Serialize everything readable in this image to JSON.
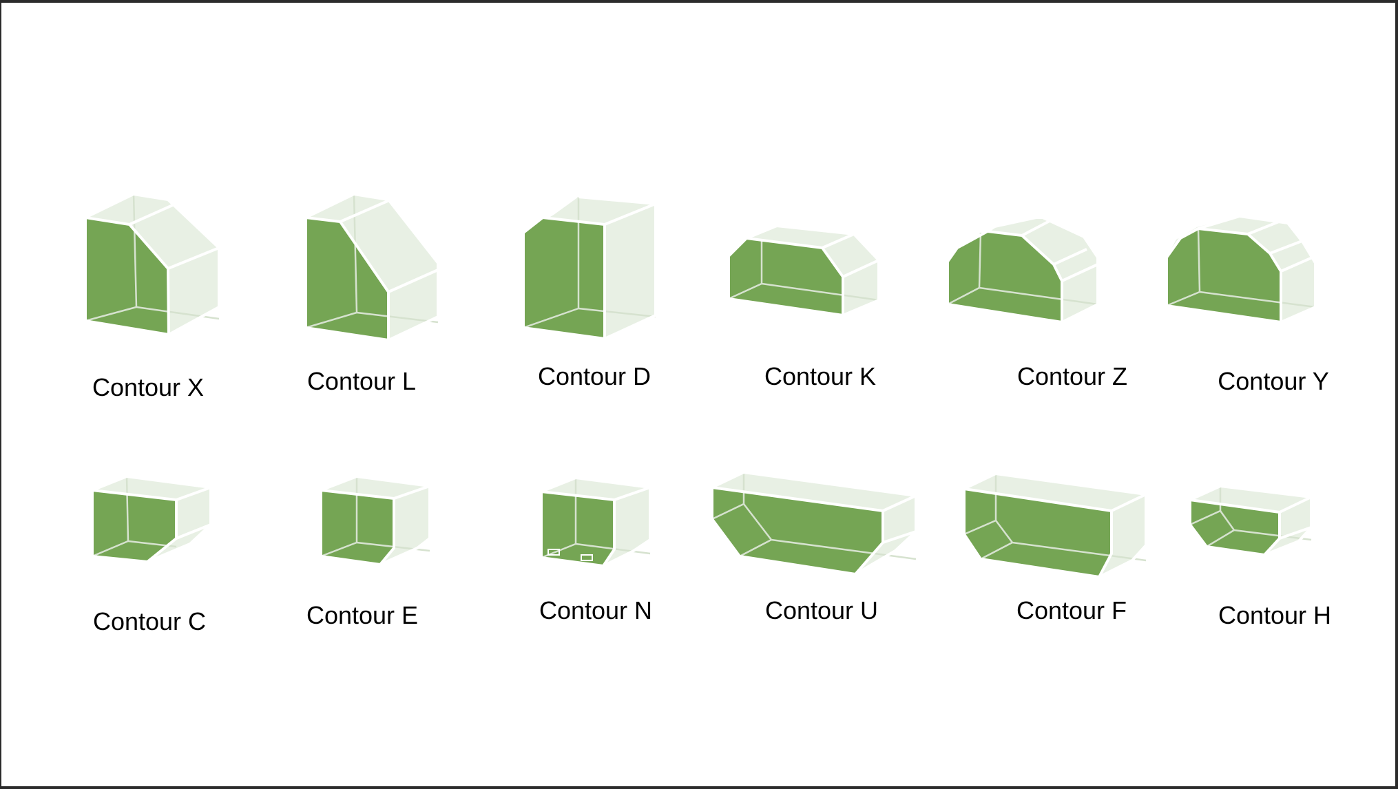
{
  "palette": {
    "front_face": "#75a554",
    "ghost_face": "#e8f0e4",
    "edge": "#ffffff",
    "background": "#ffffff"
  },
  "rows": [
    {
      "items": [
        {
          "label": "Contour X"
        },
        {
          "label": "Contour L"
        },
        {
          "label": "Contour D"
        },
        {
          "label": "Contour K"
        },
        {
          "label": "Contour Z"
        },
        {
          "label": "Contour Y"
        }
      ]
    },
    {
      "items": [
        {
          "label": "Contour C"
        },
        {
          "label": "Contour E"
        },
        {
          "label": "Contour N"
        },
        {
          "label": "Contour U"
        },
        {
          "label": "Contour F"
        },
        {
          "label": "Contour H"
        }
      ]
    }
  ]
}
